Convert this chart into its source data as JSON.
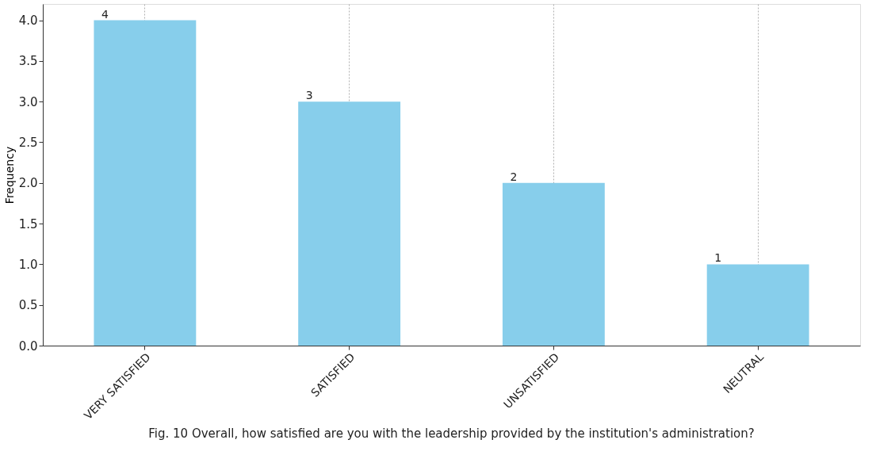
{
  "chart_data": {
    "type": "bar",
    "ylabel": "Frequency",
    "categories": [
      "VERY SATISFIED",
      "SATISFIED",
      "UNSATISFIED",
      "NEUTRAL"
    ],
    "values": [
      4,
      3,
      2,
      1
    ],
    "color": "#87ceeb",
    "ylim": [
      0,
      4.2
    ],
    "yticks": [
      {
        "value": 0,
        "label": "0.0"
      },
      {
        "value": 0.5,
        "label": "0.5"
      },
      {
        "value": 1,
        "label": "1.0"
      },
      {
        "value": 1.5,
        "label": "1.5"
      },
      {
        "value": 2,
        "label": "2.0"
      },
      {
        "value": 2.5,
        "label": "2.5"
      },
      {
        "value": 3,
        "label": "3.0"
      },
      {
        "value": 3.5,
        "label": "3.5"
      },
      {
        "value": 4,
        "label": "4.0"
      }
    ],
    "grid": "x",
    "data_labels": true,
    "annotations": [
      "Fig. 10 Overall, how satisfied are you with the leadership provided by the institution's administration?"
    ]
  }
}
